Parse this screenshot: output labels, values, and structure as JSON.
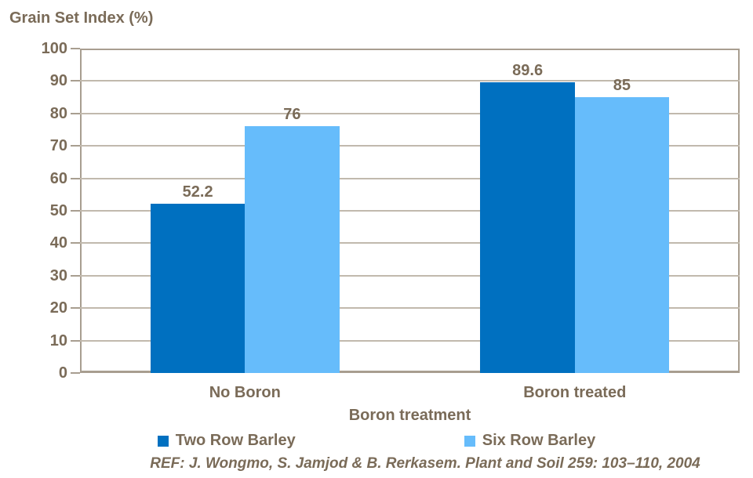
{
  "chart_data": {
    "type": "bar",
    "title": "Grain Set Index (%)",
    "categories": [
      "No Boron",
      "Boron treated"
    ],
    "series": [
      {
        "name": "Two Row Barley",
        "color": "#0070c0",
        "values": [
          52.2,
          89.6
        ],
        "labels": [
          "52.2",
          "89.6"
        ]
      },
      {
        "name": "Six Row Barley",
        "color": "#66bcfb",
        "values": [
          76,
          85
        ],
        "labels": [
          "76",
          "85"
        ]
      }
    ],
    "xlabel": "Boron treatment",
    "ylabel": "Grain Set Index (%)",
    "ylim": [
      0,
      100
    ],
    "ytick_step": 10,
    "grid": true,
    "legend_position": "bottom",
    "colors": {
      "text": "#7a6b58",
      "gridline": "#c1b9ad",
      "axis": "#a89e90",
      "series1": "#0070c0",
      "series2": "#66bcfb"
    }
  },
  "footer": {
    "reference": "REF: J. Wongmo, S. Jamjod & B. Rerkasem. Plant and Soil 259: 103–110, 2004"
  }
}
